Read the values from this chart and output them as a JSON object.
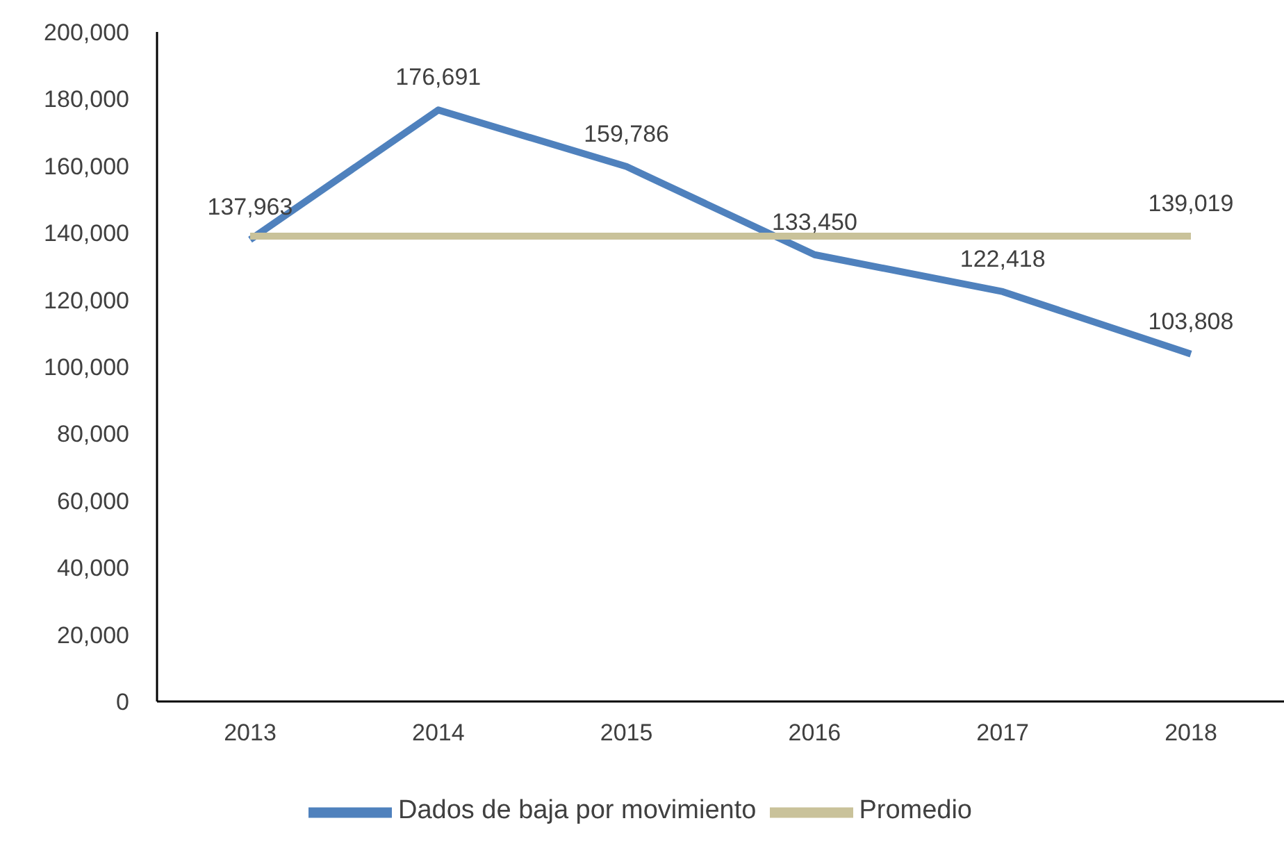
{
  "chart_data": {
    "type": "line",
    "categories": [
      "2013",
      "2014",
      "2015",
      "2016",
      "2017",
      "2018"
    ],
    "series": [
      {
        "name": "Dados de baja por movimiento",
        "color": "#4f81bd",
        "values": [
          137963,
          176691,
          159786,
          133450,
          122418,
          103808
        ],
        "value_labels": [
          "137,963",
          "176,691",
          "159,786",
          "133,450",
          "122,418",
          "103,808"
        ]
      },
      {
        "name": "Promedio",
        "color": "#c9c29a",
        "values": [
          139019,
          139019,
          139019,
          139019,
          139019,
          139019
        ],
        "value_labels": [
          null,
          null,
          null,
          null,
          null,
          "139,019"
        ]
      }
    ],
    "ylim": [
      0,
      200000
    ],
    "yticks": [
      {
        "value": 0,
        "label": "0"
      },
      {
        "value": 20000,
        "label": "20,000"
      },
      {
        "value": 40000,
        "label": "40,000"
      },
      {
        "value": 60000,
        "label": "60,000"
      },
      {
        "value": 80000,
        "label": "80,000"
      },
      {
        "value": 100000,
        "label": "100,000"
      },
      {
        "value": 120000,
        "label": "120,000"
      },
      {
        "value": 140000,
        "label": "140,000"
      },
      {
        "value": 160000,
        "label": "160,000"
      },
      {
        "value": 180000,
        "label": "180,000"
      },
      {
        "value": 200000,
        "label": "200,000"
      }
    ],
    "grid": false,
    "legend": "bottom",
    "marker": "none",
    "line_style": "solid"
  }
}
